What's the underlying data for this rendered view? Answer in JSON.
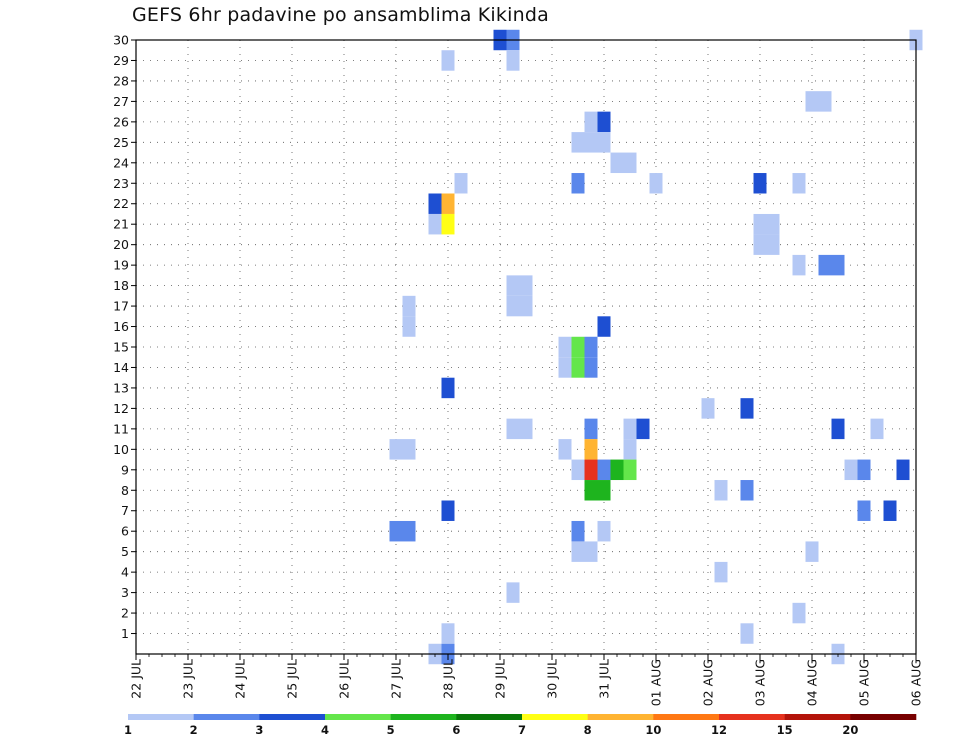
{
  "chart_data": {
    "type": "heatmap",
    "title": "GEFS 6hr padavine po ansamblima Kikinda",
    "x_tick_labels": [
      "22 JUL",
      "23 JUL",
      "24 JUL",
      "25 JUL",
      "26 JUL",
      "27 JUL",
      "28 JUL",
      "29 JUL",
      "30 JUL",
      "31 JUL",
      "01 AUG",
      "02 AUG",
      "03 AUG",
      "04 AUG",
      "05 AUG",
      "06 AUG"
    ],
    "y_tick_labels": [
      "1",
      "2",
      "3",
      "4",
      "5",
      "6",
      "7",
      "8",
      "9",
      "10",
      "11",
      "12",
      "13",
      "14",
      "15",
      "16",
      "17",
      "18",
      "19",
      "20",
      "21",
      "22",
      "23",
      "24",
      "25",
      "26",
      "27",
      "28",
      "29",
      "30"
    ],
    "xlim": [
      0,
      15
    ],
    "ylim": [
      0,
      30
    ],
    "grid": true,
    "legend": {
      "position": "bottom",
      "labels": [
        "1",
        "2",
        "3",
        "4",
        "5",
        "6",
        "7",
        "8",
        "10",
        "12",
        "15",
        "20"
      ],
      "colors": [
        "#b4c8f5",
        "#5a87eb",
        "#1e4fd2",
        "#64e64b",
        "#1eb41e",
        "#0a780a",
        "#ffff14",
        "#ffb432",
        "#ff7814",
        "#e6321e",
        "#b4140a",
        "#780000"
      ]
    },
    "cells": [
      {
        "x": 7.0,
        "y": 30,
        "level": 3
      },
      {
        "x": 7.25,
        "y": 30,
        "level": 2
      },
      {
        "x": 15.0,
        "y": 30,
        "level": 1
      },
      {
        "x": 6.0,
        "y": 29,
        "level": 1
      },
      {
        "x": 7.25,
        "y": 29,
        "level": 1
      },
      {
        "x": 13.0,
        "y": 27,
        "level": 1
      },
      {
        "x": 13.25,
        "y": 27,
        "level": 1
      },
      {
        "x": 8.75,
        "y": 26,
        "level": 1
      },
      {
        "x": 9.0,
        "y": 26,
        "level": 3
      },
      {
        "x": 8.5,
        "y": 25,
        "level": 1
      },
      {
        "x": 8.75,
        "y": 25,
        "level": 1
      },
      {
        "x": 9.0,
        "y": 25,
        "level": 1
      },
      {
        "x": 9.25,
        "y": 24,
        "level": 1
      },
      {
        "x": 9.5,
        "y": 24,
        "level": 1
      },
      {
        "x": 6.25,
        "y": 23,
        "level": 1
      },
      {
        "x": 8.5,
        "y": 23,
        "level": 2
      },
      {
        "x": 10.0,
        "y": 23,
        "level": 1
      },
      {
        "x": 12.0,
        "y": 23,
        "level": 3
      },
      {
        "x": 12.75,
        "y": 23,
        "level": 1
      },
      {
        "x": 5.75,
        "y": 22,
        "level": 3
      },
      {
        "x": 6.0,
        "y": 22,
        "level": 8
      },
      {
        "x": 5.75,
        "y": 21,
        "level": 1
      },
      {
        "x": 6.0,
        "y": 21,
        "level": 7
      },
      {
        "x": 12.0,
        "y": 21,
        "level": 1
      },
      {
        "x": 12.25,
        "y": 21,
        "level": 1
      },
      {
        "x": 12.0,
        "y": 20,
        "level": 1
      },
      {
        "x": 12.25,
        "y": 20,
        "level": 1
      },
      {
        "x": 12.75,
        "y": 19,
        "level": 1
      },
      {
        "x": 13.25,
        "y": 19,
        "level": 2
      },
      {
        "x": 13.5,
        "y": 19,
        "level": 2
      },
      {
        "x": 7.25,
        "y": 18,
        "level": 1
      },
      {
        "x": 7.5,
        "y": 18,
        "level": 1
      },
      {
        "x": 5.25,
        "y": 17,
        "level": 1
      },
      {
        "x": 7.25,
        "y": 17,
        "level": 1
      },
      {
        "x": 7.5,
        "y": 17,
        "level": 1
      },
      {
        "x": 5.25,
        "y": 16,
        "level": 1
      },
      {
        "x": 9.0,
        "y": 16,
        "level": 3
      },
      {
        "x": 8.25,
        "y": 15,
        "level": 1
      },
      {
        "x": 8.5,
        "y": 15,
        "level": 4
      },
      {
        "x": 8.75,
        "y": 15,
        "level": 2
      },
      {
        "x": 8.25,
        "y": 14,
        "level": 1
      },
      {
        "x": 8.5,
        "y": 14,
        "level": 4
      },
      {
        "x": 8.75,
        "y": 14,
        "level": 2
      },
      {
        "x": 6.0,
        "y": 13,
        "level": 3
      },
      {
        "x": 11.0,
        "y": 12,
        "level": 1
      },
      {
        "x": 11.75,
        "y": 12,
        "level": 3
      },
      {
        "x": 7.25,
        "y": 11,
        "level": 1
      },
      {
        "x": 7.5,
        "y": 11,
        "level": 1
      },
      {
        "x": 8.75,
        "y": 11,
        "level": 2
      },
      {
        "x": 9.5,
        "y": 11,
        "level": 1
      },
      {
        "x": 9.75,
        "y": 11,
        "level": 3
      },
      {
        "x": 13.5,
        "y": 11,
        "level": 3
      },
      {
        "x": 14.25,
        "y": 11,
        "level": 1
      },
      {
        "x": 5.0,
        "y": 10,
        "level": 1
      },
      {
        "x": 5.25,
        "y": 10,
        "level": 1
      },
      {
        "x": 8.25,
        "y": 10,
        "level": 1
      },
      {
        "x": 8.75,
        "y": 10,
        "level": 8
      },
      {
        "x": 9.5,
        "y": 10,
        "level": 1
      },
      {
        "x": 8.5,
        "y": 9,
        "level": 1
      },
      {
        "x": 8.75,
        "y": 9,
        "level": 10
      },
      {
        "x": 9.0,
        "y": 9,
        "level": 2
      },
      {
        "x": 9.25,
        "y": 9,
        "level": 5
      },
      {
        "x": 9.5,
        "y": 9,
        "level": 4
      },
      {
        "x": 13.75,
        "y": 9,
        "level": 1
      },
      {
        "x": 14.0,
        "y": 9,
        "level": 2
      },
      {
        "x": 14.75,
        "y": 9,
        "level": 3
      },
      {
        "x": 8.75,
        "y": 8,
        "level": 5
      },
      {
        "x": 9.0,
        "y": 8,
        "level": 5
      },
      {
        "x": 11.25,
        "y": 8,
        "level": 1
      },
      {
        "x": 11.75,
        "y": 8,
        "level": 2
      },
      {
        "x": 6.0,
        "y": 7,
        "level": 3
      },
      {
        "x": 14.0,
        "y": 7,
        "level": 2
      },
      {
        "x": 14.5,
        "y": 7,
        "level": 3
      },
      {
        "x": 5.0,
        "y": 6,
        "level": 2
      },
      {
        "x": 5.25,
        "y": 6,
        "level": 2
      },
      {
        "x": 8.5,
        "y": 6,
        "level": 2
      },
      {
        "x": 9.0,
        "y": 6,
        "level": 1
      },
      {
        "x": 8.5,
        "y": 5,
        "level": 1
      },
      {
        "x": 8.75,
        "y": 5,
        "level": 1
      },
      {
        "x": 13.0,
        "y": 5,
        "level": 1
      },
      {
        "x": 11.25,
        "y": 4,
        "level": 1
      },
      {
        "x": 7.25,
        "y": 3,
        "level": 1
      },
      {
        "x": 12.75,
        "y": 2,
        "level": 1
      },
      {
        "x": 6.0,
        "y": 1,
        "level": 1
      },
      {
        "x": 11.75,
        "y": 1,
        "level": 1
      },
      {
        "x": 5.75,
        "y": 0,
        "level": 1
      },
      {
        "x": 6.0,
        "y": 0,
        "level": 2
      },
      {
        "x": 13.5,
        "y": 0,
        "level": 1
      }
    ]
  }
}
